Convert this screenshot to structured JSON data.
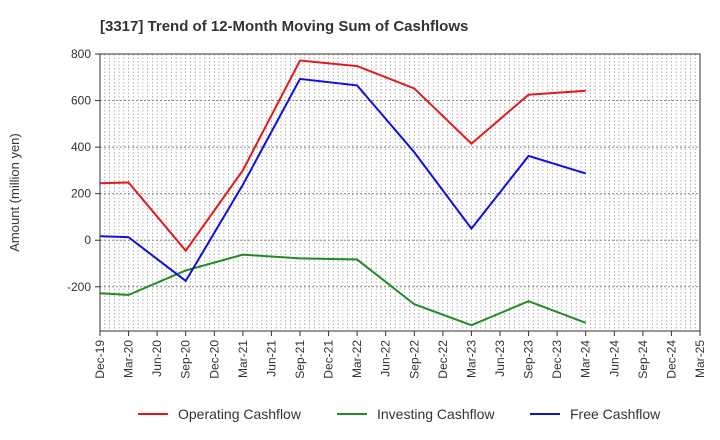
{
  "chart_data": {
    "type": "line",
    "title": "[3317]  Trend of 12-Month Moving Sum of Cashflows",
    "xlabel": "",
    "ylabel": "Amount (million yen)",
    "categories": [
      "Dec-19",
      "Mar-20",
      "Jun-20",
      "Sep-20",
      "Dec-20",
      "Mar-21",
      "Jun-21",
      "Sep-21",
      "Dec-21",
      "Mar-22",
      "Jun-22",
      "Sep-22",
      "Dec-22",
      "Mar-23",
      "Jun-23",
      "Sep-23",
      "Dec-23",
      "Mar-24",
      "Jun-24",
      "Sep-24",
      "Dec-24",
      "Mar-25"
    ],
    "yticks": [
      800,
      600,
      400,
      200,
      0,
      -200
    ],
    "ylim": [
      -390,
      800
    ],
    "grid": true,
    "legend_position": "bottom",
    "series": [
      {
        "name": "Operating Cashflow",
        "color": "#e31a1c",
        "points": [
          {
            "x": "Dec-19",
            "y": 245
          },
          {
            "x": "Mar-20",
            "y": 248
          },
          {
            "x": "Sep-20",
            "y": -45
          },
          {
            "x": "Mar-21",
            "y": 300
          },
          {
            "x": "Sep-21",
            "y": 772
          },
          {
            "x": "Mar-22",
            "y": 748
          },
          {
            "x": "Sep-22",
            "y": 652
          },
          {
            "x": "Mar-23",
            "y": 415
          },
          {
            "x": "Sep-23",
            "y": 625
          },
          {
            "x": "Mar-24",
            "y": 642
          }
        ]
      },
      {
        "name": "Investing Cashflow",
        "color": "#238b23",
        "points": [
          {
            "x": "Dec-19",
            "y": -228
          },
          {
            "x": "Mar-20",
            "y": -235
          },
          {
            "x": "Sep-20",
            "y": -130
          },
          {
            "x": "Mar-21",
            "y": -62
          },
          {
            "x": "Sep-21",
            "y": -78
          },
          {
            "x": "Mar-22",
            "y": -83
          },
          {
            "x": "Sep-22",
            "y": -275
          },
          {
            "x": "Mar-23",
            "y": -365
          },
          {
            "x": "Sep-23",
            "y": -262
          },
          {
            "x": "Mar-24",
            "y": -355
          }
        ]
      },
      {
        "name": "Free Cashflow",
        "color": "#1010e0",
        "points": [
          {
            "x": "Dec-19",
            "y": 17
          },
          {
            "x": "Mar-20",
            "y": 13
          },
          {
            "x": "Sep-20",
            "y": -175
          },
          {
            "x": "Mar-21",
            "y": 238
          },
          {
            "x": "Sep-21",
            "y": 693
          },
          {
            "x": "Mar-22",
            "y": 665
          },
          {
            "x": "Sep-22",
            "y": 378
          },
          {
            "x": "Mar-23",
            "y": 50
          },
          {
            "x": "Sep-23",
            "y": 362
          },
          {
            "x": "Mar-24",
            "y": 287
          }
        ]
      }
    ]
  }
}
